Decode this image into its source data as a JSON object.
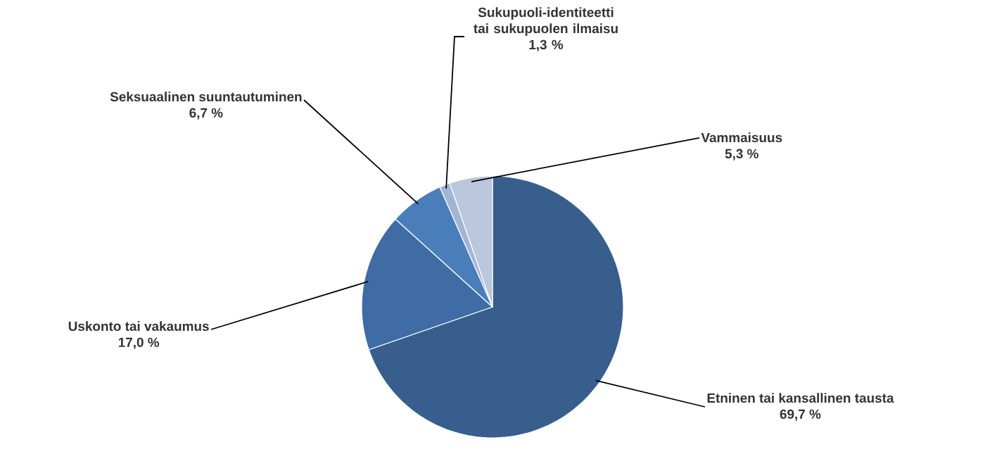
{
  "chart_data": {
    "type": "pie",
    "categories": [
      "Etninen tai kansallinen tausta",
      "Uskonto tai vakaumus",
      "Seksuaalinen suuntautuminen",
      "Sukupuoli-identiteetti tai sukupuolen ilmaisu",
      "Vammaisuus"
    ],
    "values": [
      69.7,
      17.0,
      6.7,
      1.3,
      5.3
    ],
    "colors": [
      "#375e8c",
      "#3f6ca5",
      "#4a7ebb",
      "#a3b5d5",
      "#bac7dd"
    ],
    "value_labels": [
      "69,7 %",
      "17,0 %",
      "6,7 %",
      "1,3 %",
      "5,3 %"
    ]
  }
}
